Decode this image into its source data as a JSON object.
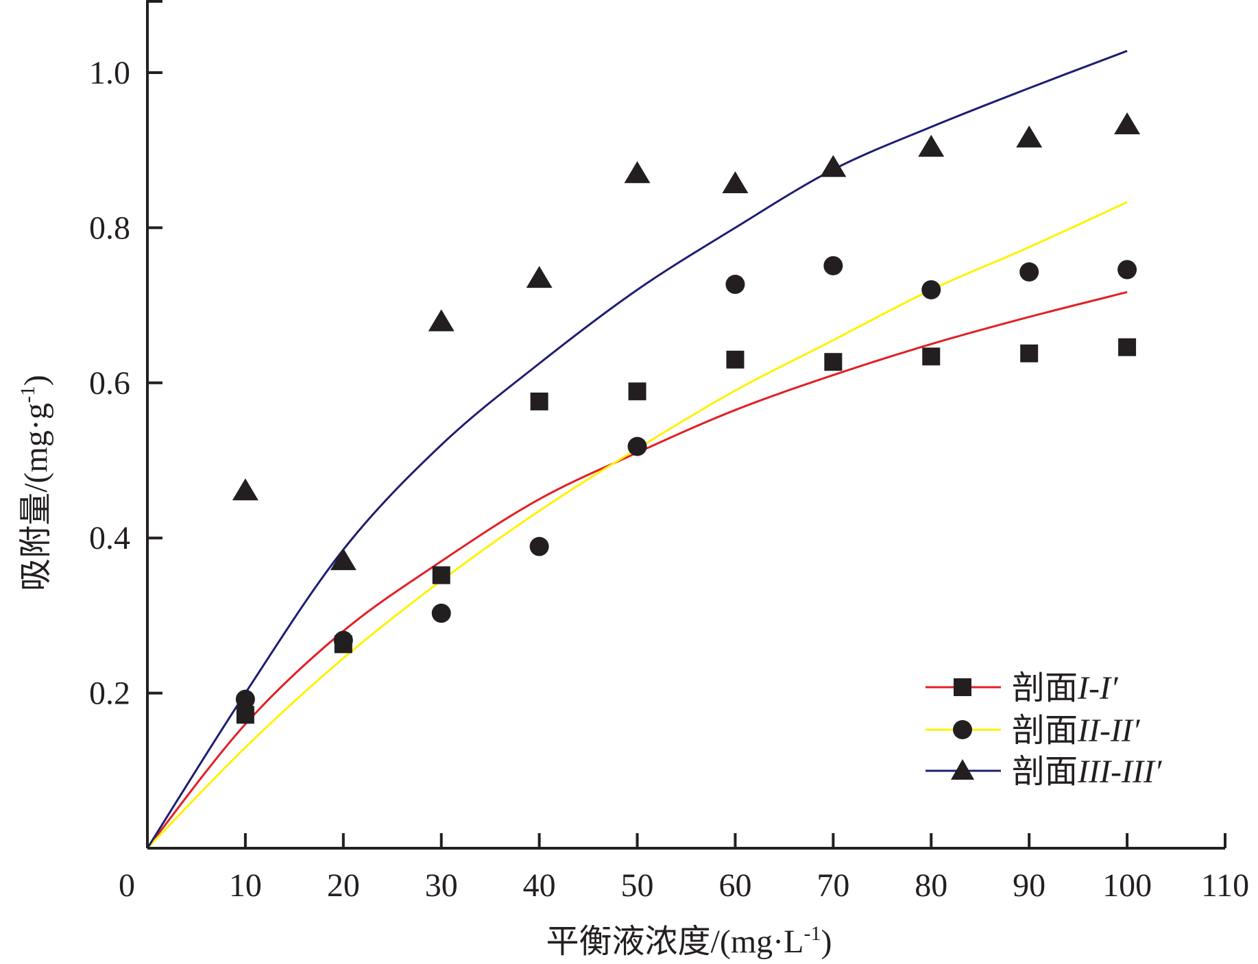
{
  "chart_data": {
    "type": "scatter",
    "xlabel": "平衡液浓度/(mg·L",
    "xlabel_sup": "-1",
    "xlabel_end": ")",
    "ylabel": "吸附量/(mg·g",
    "ylabel_sup": "-1",
    "ylabel_end": ")",
    "xlim": [
      0,
      110
    ],
    "ylim": [
      0,
      1.1
    ],
    "x_ticks": [
      0,
      10,
      20,
      30,
      40,
      50,
      60,
      70,
      80,
      90,
      100,
      110
    ],
    "x_tick_labels": [
      "0",
      "10",
      "20",
      "30",
      "40",
      "50",
      "60",
      "70",
      "80",
      "90",
      "100",
      "110"
    ],
    "y_ticks": [
      0.2,
      0.4,
      0.6,
      0.8,
      1.0
    ],
    "y_tick_labels": [
      "0.2",
      "0.4",
      "0.6",
      "0.8",
      "1.0"
    ],
    "grid": false,
    "legend_position": "bottom-right",
    "series": [
      {
        "name": "剖面I-I′",
        "name_prefix": "剖面",
        "name_suffix": "I-I′",
        "marker": "square",
        "line_color": "#e31e24",
        "x": [
          10,
          20,
          30,
          40,
          50,
          60,
          70,
          80,
          90,
          100
        ],
        "y": [
          0.172,
          0.263,
          0.352,
          0.576,
          0.589,
          0.63,
          0.627,
          0.634,
          0.638,
          0.646
        ],
        "fit_x": [
          0,
          10,
          20,
          30,
          40,
          50,
          60,
          70,
          80,
          90,
          100
        ],
        "fit_y": [
          0,
          0.16,
          0.28,
          0.37,
          0.45,
          0.51,
          0.565,
          0.61,
          0.65,
          0.685,
          0.717
        ]
      },
      {
        "name": "剖面II-II′",
        "name_prefix": "剖面",
        "name_suffix": "II-II′",
        "marker": "circle",
        "line_color": "#fff200",
        "x": [
          10,
          20,
          30,
          40,
          50,
          60,
          70,
          80,
          90,
          100
        ],
        "y": [
          0.192,
          0.268,
          0.303,
          0.389,
          0.518,
          0.727,
          0.751,
          0.72,
          0.743,
          0.746
        ],
        "fit_x": [
          0,
          10,
          20,
          30,
          40,
          50,
          60,
          70,
          80,
          90,
          100
        ],
        "fit_y": [
          0,
          0.13,
          0.245,
          0.345,
          0.435,
          0.515,
          0.59,
          0.655,
          0.72,
          0.775,
          0.833
        ]
      },
      {
        "name": "剖面III-III′",
        "name_prefix": "剖面",
        "name_suffix": "III-III′",
        "marker": "triangle",
        "line_color": "#1d1d73",
        "x": [
          10,
          20,
          30,
          40,
          50,
          60,
          70,
          80,
          90,
          100
        ],
        "y": [
          0.46,
          0.37,
          0.678,
          0.734,
          0.869,
          0.856,
          0.877,
          0.903,
          0.915,
          0.932
        ],
        "fit_x": [
          0,
          10,
          20,
          30,
          40,
          50,
          60,
          70,
          80,
          90,
          100
        ],
        "fit_y": [
          0,
          0.2,
          0.385,
          0.52,
          0.625,
          0.72,
          0.8,
          0.875,
          0.93,
          0.98,
          1.028
        ]
      }
    ]
  }
}
